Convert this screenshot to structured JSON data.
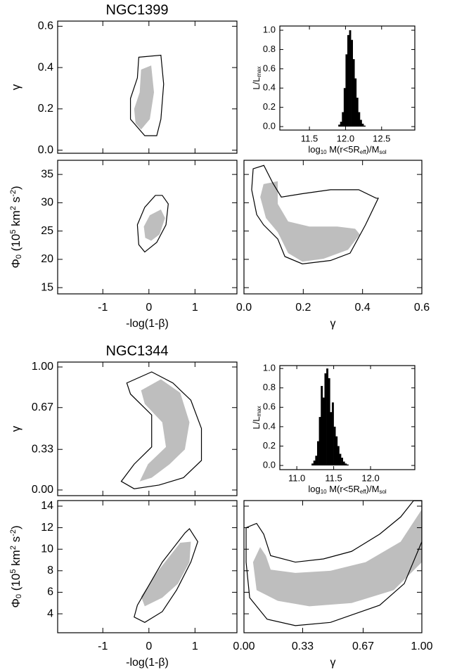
{
  "chart_data": [
    {
      "type": "contour",
      "title": "NGC1399",
      "ylabel": {
        "text": [
          "γ"
        ],
        "shift": [
          ""
        ]
      },
      "xlim": [
        -1.98,
        1.91
      ],
      "ylim": [
        -0.015,
        0.625
      ],
      "xticks": [
        -1,
        0,
        1
      ],
      "xticklabels": false,
      "yticks": [
        {
          "value": 0,
          "label": "0.0"
        },
        {
          "value": 0.2,
          "label": "0.2"
        },
        {
          "value": 0.4,
          "label": "0.4"
        },
        {
          "value": 0.6,
          "label": "0.6"
        }
      ],
      "line_color": "#000000",
      "fill_color": "#bebebe",
      "outer": {
        "x": [
          -0.22,
          0.26,
          0.32,
          0.26,
          0.17,
          -0.09,
          -0.4,
          -0.4,
          -0.25
        ],
        "y": [
          0.45,
          0.46,
          0.32,
          0.15,
          0.07,
          0.07,
          0.15,
          0.25,
          0.35
        ]
      },
      "inner": {
        "x": [
          -0.17,
          0.05,
          0.11,
          0.02,
          -0.17,
          -0.29,
          -0.32,
          -0.2
        ],
        "y": [
          0.39,
          0.41,
          0.28,
          0.15,
          0.1,
          0.13,
          0.2,
          0.28
        ]
      }
    },
    {
      "type": "histogram",
      "xlabel": {
        "text": [
          "log",
          "10",
          " M(r<5R",
          "eff",
          ")/M",
          "sol"
        ],
        "shift": [
          "",
          "sub",
          "",
          "sub",
          "",
          "sub"
        ]
      },
      "ylabel": {
        "text": [
          "L/L",
          "max"
        ],
        "shift": [
          "",
          "sub"
        ]
      },
      "xlim": [
        11.09,
        12.96
      ],
      "ylim": [
        -0.036,
        1.044
      ],
      "xticks": [
        {
          "value": 11.5,
          "label": "11.5"
        },
        {
          "value": 12,
          "label": "12.0"
        },
        {
          "value": 12.5,
          "label": "12.5"
        }
      ],
      "yticks": [
        {
          "value": 0,
          "label": "0.0"
        },
        {
          "value": 0.2,
          "label": "0.2"
        },
        {
          "value": 0.4,
          "label": "0.4"
        },
        {
          "value": 0.6,
          "label": "0.6"
        },
        {
          "value": 0.8,
          "label": "0.8"
        },
        {
          "value": 1,
          "label": "1.0"
        }
      ],
      "color": "#000000",
      "bins": [
        11.9,
        11.925,
        11.95,
        11.975,
        12.0,
        12.025,
        12.05,
        12.075,
        12.1,
        12.125,
        12.15,
        12.175,
        12.2,
        12.225,
        12.25,
        12.275
      ],
      "counts": [
        0.02,
        0.05,
        0.15,
        0.4,
        0.75,
        0.95,
        1.0,
        0.9,
        0.7,
        0.5,
        0.3,
        0.15,
        0.07,
        0.03,
        0.01
      ]
    },
    {
      "type": "contour",
      "xlabel": {
        "text": [
          "-log(1-β)"
        ],
        "shift": [
          ""
        ]
      },
      "ylabel": {
        "text": [
          "Φ",
          "0",
          " (10",
          "5",
          " km",
          "2",
          " s",
          "-2",
          ")"
        ],
        "shift": [
          "",
          "sub",
          "",
          "sup",
          "",
          "sup",
          "",
          "sup",
          ""
        ]
      },
      "xlim": [
        -1.98,
        1.91
      ],
      "ylim": [
        13.9,
        37.5
      ],
      "xticks": [
        -1,
        0,
        1
      ],
      "yticks": [
        15,
        20,
        25,
        30,
        35
      ],
      "line_color": "#000000",
      "fill_color": "#bebebe",
      "outer": {
        "x": [
          0.29,
          0.42,
          0.37,
          0.17,
          -0.09,
          -0.22,
          -0.25,
          -0.09,
          0.14
        ],
        "y": [
          31.3,
          29.8,
          26.1,
          23.0,
          21.3,
          22.6,
          26.1,
          29.2,
          31.3
        ]
      },
      "inner": {
        "x": [
          0.26,
          0.35,
          0.23,
          0.05,
          -0.08,
          -0.11,
          0.02
        ],
        "y": [
          28.8,
          27.3,
          24.4,
          23.3,
          23.8,
          25.8,
          27.8
        ]
      }
    },
    {
      "type": "contour",
      "xlabel": {
        "text": [
          "γ"
        ],
        "shift": [
          ""
        ]
      },
      "xlim": [
        0,
        0.6
      ],
      "ylim": [
        13.9,
        37.5
      ],
      "xticks": [
        {
          "value": 0,
          "label": "0.0"
        },
        {
          "value": 0.2,
          "label": "0.2"
        },
        {
          "value": 0.4,
          "label": "0.4"
        },
        {
          "value": 0.6,
          "label": "0.6"
        }
      ],
      "yticks": [
        15,
        20,
        25,
        30,
        35
      ],
      "yticklabels": false,
      "line_color": "#000000",
      "fill_color": "#bebebe",
      "outer": {
        "x": [
          0.031,
          0.067,
          0.097,
          0.126,
          0.197,
          0.292,
          0.387,
          0.446,
          0.453,
          0.41,
          0.358,
          0.292,
          0.197,
          0.138,
          0.114,
          0.066,
          0.043,
          0.026
        ],
        "y": [
          36.0,
          36.6,
          33.5,
          31.0,
          31.6,
          32.3,
          32.3,
          30.8,
          30.8,
          26.1,
          21.1,
          19.8,
          19.2,
          20.5,
          23.6,
          26.1,
          27.9,
          32.3
        ]
      },
      "inner": {
        "x": [
          0.066,
          0.114,
          0.114,
          0.149,
          0.221,
          0.315,
          0.375,
          0.391,
          0.351,
          0.268,
          0.197,
          0.149,
          0.114,
          0.074,
          0.055
        ],
        "y": [
          33.3,
          33.8,
          29.8,
          26.7,
          25.8,
          25.8,
          25.4,
          24.4,
          21.7,
          20.1,
          19.6,
          21.1,
          24.8,
          27.3,
          31.0
        ]
      }
    },
    {
      "type": "contour",
      "title": "NGC1344",
      "ylabel": {
        "text": [
          "γ"
        ],
        "shift": [
          ""
        ]
      },
      "xlim": [
        -1.98,
        1.91
      ],
      "ylim": [
        -0.046,
        1.04
      ],
      "xticks": [
        -1,
        0,
        1
      ],
      "xticklabels": false,
      "yticks": [
        {
          "value": 0,
          "label": "0.00"
        },
        {
          "value": 0.33,
          "label": "0.33"
        },
        {
          "value": 0.67,
          "label": "0.67"
        },
        {
          "value": 1,
          "label": "1.00"
        }
      ],
      "line_color": "#000000",
      "fill_color": "#bebebe",
      "outer": {
        "x": [
          -0.48,
          0.06,
          0.52,
          0.91,
          1.14,
          1.14,
          0.75,
          0.22,
          -0.32,
          -0.6,
          -0.32,
          0.06,
          0.06,
          -0.4
        ],
        "y": [
          0.87,
          0.96,
          0.87,
          0.73,
          0.5,
          0.24,
          0.1,
          0.04,
          0.01,
          0.07,
          0.21,
          0.35,
          0.61,
          0.78
        ]
      },
      "inner": {
        "x": [
          -0.17,
          0.26,
          0.68,
          0.88,
          0.78,
          0.45,
          0.06,
          -0.2,
          -0.02,
          0.37,
          0.29,
          -0.09
        ],
        "y": [
          0.81,
          0.9,
          0.79,
          0.55,
          0.33,
          0.21,
          0.1,
          0.07,
          0.21,
          0.35,
          0.55,
          0.7
        ]
      }
    },
    {
      "type": "histogram",
      "xlabel": {
        "text": [
          "log",
          "10",
          " M(r<5R",
          "eff",
          ")/M",
          "sol"
        ],
        "shift": [
          "",
          "sub",
          "",
          "sub",
          "",
          "sub"
        ]
      },
      "ylabel": {
        "text": [
          "L/L",
          "max"
        ],
        "shift": [
          "",
          "sub"
        ]
      },
      "xlim": [
        10.77,
        12.6
      ],
      "ylim": [
        -0.043,
        1.03
      ],
      "xticks": [
        {
          "value": 11,
          "label": "11.0"
        },
        {
          "value": 11.5,
          "label": "11.5"
        },
        {
          "value": 12,
          "label": "12.0"
        }
      ],
      "yticks": [
        {
          "value": 0,
          "label": "0.0"
        },
        {
          "value": 0.2,
          "label": "0.2"
        },
        {
          "value": 0.4,
          "label": "0.4"
        },
        {
          "value": 0.6,
          "label": "0.6"
        },
        {
          "value": 0.8,
          "label": "0.8"
        },
        {
          "value": 1,
          "label": "1.0"
        }
      ],
      "color": "#000000",
      "bins": [
        11.2,
        11.225,
        11.25,
        11.275,
        11.3,
        11.325,
        11.35,
        11.375,
        11.4,
        11.425,
        11.45,
        11.475,
        11.5,
        11.525,
        11.55,
        11.575,
        11.6,
        11.625,
        11.65,
        11.675,
        11.7
      ],
      "counts": [
        0.02,
        0.05,
        0.1,
        0.25,
        0.5,
        0.82,
        0.7,
        0.95,
        1.0,
        0.9,
        0.55,
        0.65,
        0.4,
        0.3,
        0.2,
        0.12,
        0.08,
        0.04,
        0.02,
        0.01
      ]
    },
    {
      "type": "contour",
      "xlabel": {
        "text": [
          "-log(1-β)"
        ],
        "shift": [
          ""
        ]
      },
      "ylabel": {
        "text": [
          "Φ",
          "0",
          " (10",
          "5",
          " km",
          "2",
          " s",
          "-2",
          ")"
        ],
        "shift": [
          "",
          "sub",
          "",
          "sup",
          "",
          "sup",
          "",
          "sup",
          ""
        ]
      },
      "xlim": [
        -1.98,
        1.91
      ],
      "ylim": [
        2.24,
        14.52
      ],
      "xticks": [
        -1,
        0,
        1
      ],
      "yticks": [
        4,
        6,
        8,
        10,
        12,
        14
      ],
      "line_color": "#000000",
      "fill_color": "#bebebe",
      "outer": {
        "x": [
          0.78,
          0.88,
          1.06,
          0.91,
          0.6,
          0.29,
          -0.09,
          -0.32,
          -0.25,
          0.29
        ],
        "y": [
          11.5,
          11.9,
          10.7,
          8.8,
          6.2,
          4.2,
          3.2,
          3.7,
          4.8,
          8.8
        ]
      },
      "inner": {
        "x": [
          0.68,
          0.91,
          0.88,
          0.63,
          0.29,
          -0.09,
          -0.17,
          0.22
        ],
        "y": [
          10.6,
          10.7,
          8.8,
          6.8,
          5.5,
          4.7,
          5.6,
          8.1
        ]
      }
    },
    {
      "type": "contour",
      "xlabel": {
        "text": [
          "γ"
        ],
        "shift": [
          ""
        ]
      },
      "xlim": [
        0,
        1
      ],
      "ylim": [
        2.24,
        14.52
      ],
      "xticks": [
        {
          "value": 0,
          "label": "0.00"
        },
        {
          "value": 0.33,
          "label": "0.33"
        },
        {
          "value": 0.67,
          "label": "0.67"
        },
        {
          "value": 1,
          "label": "1.00"
        }
      ],
      "yticks": [
        4,
        6,
        8,
        10,
        12,
        14
      ],
      "yticklabels": false,
      "line_color": "#000000",
      "fill_color": "#bebebe",
      "outer": {
        "x": [
          0.012,
          0.071,
          0.111,
          0.15,
          0.289,
          0.447,
          0.605,
          0.763,
          0.881,
          0.953,
          1.0,
          1.0,
          0.901,
          0.763,
          0.486,
          0.289,
          0.13,
          0.032,
          0.012
        ],
        "y": [
          12.0,
          12.4,
          11.4,
          9.4,
          8.8,
          9.1,
          9.8,
          11.4,
          13.0,
          14.5,
          14.5,
          10.7,
          6.8,
          4.8,
          3.2,
          2.9,
          3.5,
          5.5,
          8.8
        ]
      },
      "inner": {
        "x": [
          0.051,
          0.091,
          0.123,
          0.15,
          0.289,
          0.486,
          0.684,
          0.881,
          1.0,
          1.0,
          0.842,
          0.605,
          0.368,
          0.19,
          0.071
        ],
        "y": [
          8.8,
          10.2,
          9.4,
          8.1,
          7.8,
          8.0,
          8.8,
          10.7,
          13.7,
          8.8,
          6.2,
          5.0,
          4.7,
          5.2,
          6.2
        ]
      }
    }
  ]
}
